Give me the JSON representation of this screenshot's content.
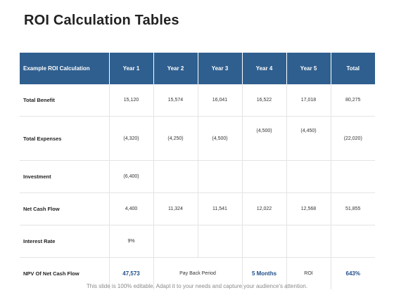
{
  "title": "ROI Calculation Tables",
  "table": {
    "headers": [
      "Example ROI Calculation",
      "Year 1",
      "Year 2",
      "Year 3",
      "Year 4",
      "Year 5",
      "Total"
    ],
    "rows": [
      {
        "label": "Total Benefit",
        "cells": [
          "15,120",
          "15,574",
          "16,041",
          "16,522",
          "17,018",
          "80,275"
        ]
      },
      {
        "label": "Total Expenses",
        "cells": [
          "(4,320)",
          "(4,250)",
          "(4,500)",
          "(4,500)",
          "(4,450)",
          "(22,020)"
        ]
      },
      {
        "label": "Investment",
        "cells": [
          "(6,400)",
          "",
          "",
          "",
          "",
          ""
        ]
      },
      {
        "label": "Net Cash Flow",
        "cells": [
          "4,400",
          "11,324",
          "11,541",
          "12,022",
          "12,568",
          "51,855"
        ]
      },
      {
        "label": "Interest Rate",
        "cells": [
          "9%",
          "",
          "",
          "",
          "",
          ""
        ]
      }
    ],
    "npv_row": {
      "label": "NPV Of Net Cash Flow",
      "npv_value": "47,573",
      "payback_label": "Pay Back Period",
      "payback_value": "5 Months",
      "roi_label": "ROI",
      "roi_value": "643%"
    }
  },
  "footer": "This slide is 100% editable. Adapt it to your needs and capture your audience's attention."
}
